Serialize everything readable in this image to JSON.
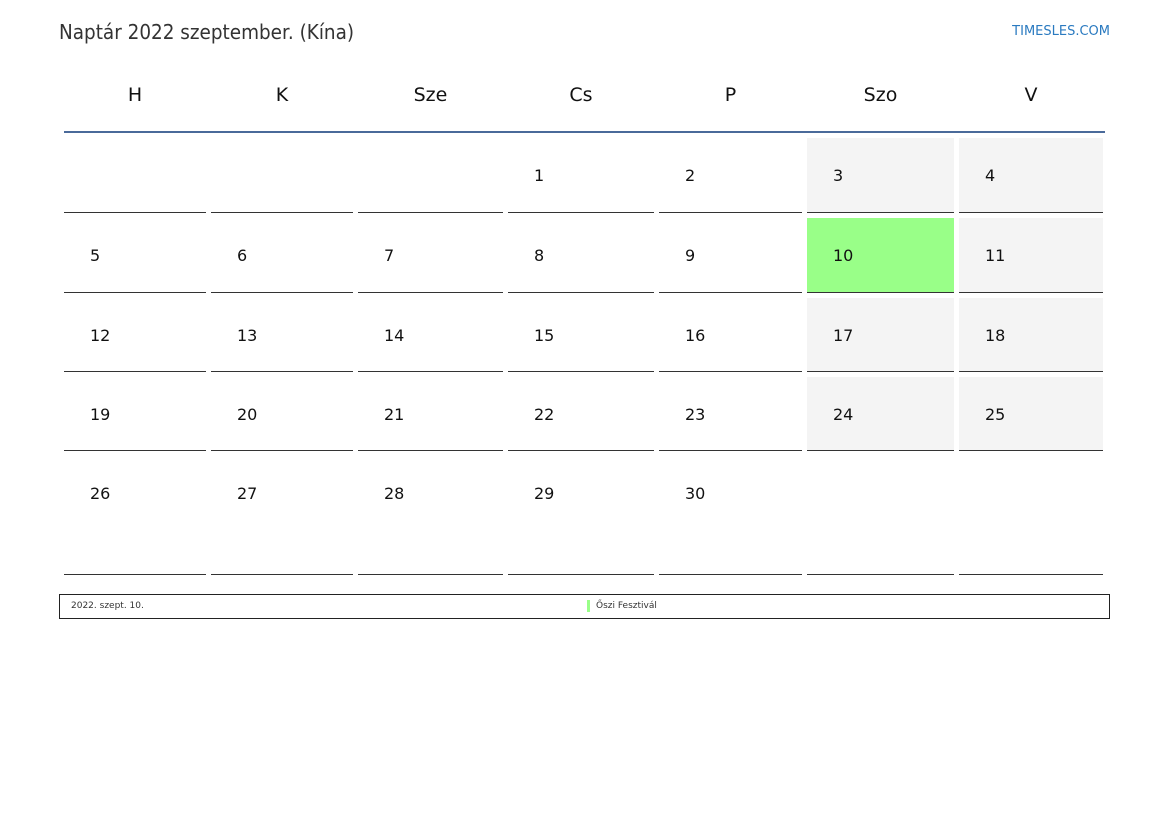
{
  "title": "Naptár 2022 szeptember. (Kína)",
  "brand": "TIMESLES.COM",
  "weekdays": [
    "H",
    "K",
    "Sze",
    "Cs",
    "P",
    "Szo",
    "V"
  ],
  "weeks": [
    [
      "",
      "",
      "",
      "1",
      "2",
      "3",
      "4"
    ],
    [
      "5",
      "6",
      "7",
      "8",
      "9",
      "10",
      "11"
    ],
    [
      "12",
      "13",
      "14",
      "15",
      "16",
      "17",
      "18"
    ],
    [
      "19",
      "20",
      "21",
      "22",
      "23",
      "24",
      "25"
    ],
    [
      "26",
      "27",
      "28",
      "29",
      "30",
      "",
      ""
    ]
  ],
  "holiday_day": "10",
  "colors": {
    "holiday": "#99ff88",
    "weekend": "#f4f4f4",
    "header_line": "#4a6a9a",
    "brand": "#2a7ac0"
  },
  "legend": {
    "date": "2022. szept. 10.",
    "name": "Őszi Fesztivál"
  }
}
